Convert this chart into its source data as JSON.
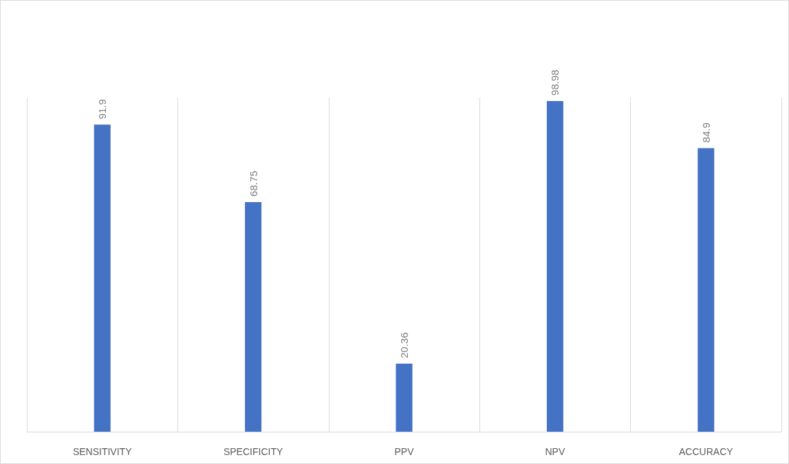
{
  "chart_data": {
    "type": "bar",
    "categories": [
      "SENSITIVITY",
      "SPECIFICITY",
      "PPV",
      "NPV",
      "ACCURACY"
    ],
    "values": [
      91.9,
      68.75,
      20.36,
      98.98,
      84.9
    ],
    "color": "#4472c4",
    "data_labels": true,
    "grid": "x"
  }
}
